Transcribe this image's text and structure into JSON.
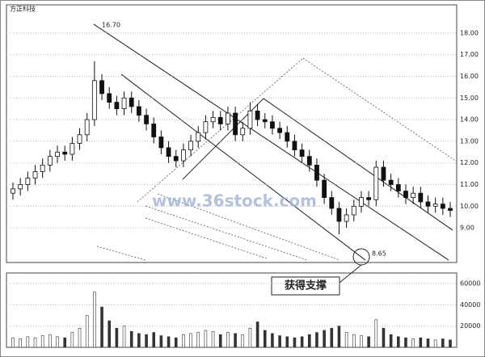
{
  "chart_data": {
    "type": "candlestick",
    "title": "方正科技",
    "open": [
      10.6,
      10.8,
      11.0,
      11.3,
      11.6,
      11.9,
      12.3,
      12.5,
      12.4,
      12.9,
      13.3,
      14.0,
      15.8,
      15.2,
      14.8,
      14.5,
      15.0,
      14.6,
      14.2,
      13.8,
      13.2,
      12.7,
      12.3,
      12.1,
      12.6,
      13.0,
      13.4,
      13.9,
      14.1,
      13.8,
      14.3,
      13.3,
      13.6,
      14.4,
      14.0,
      13.9,
      13.6,
      13.4,
      13.0,
      12.6,
      12.3,
      11.9,
      11.2,
      10.4,
      9.9,
      9.3,
      9.6,
      10.0,
      10.4,
      10.3,
      11.8,
      11.2,
      11.0,
      10.7,
      10.4,
      10.6,
      10.2,
      10.0,
      10.1,
      9.9
    ],
    "high": [
      11.1,
      11.3,
      11.6,
      11.9,
      12.2,
      12.6,
      12.8,
      12.8,
      13.2,
      13.6,
      14.3,
      16.7,
      16.1,
      15.5,
      15.1,
      15.3,
      15.3,
      14.9,
      14.5,
      14.1,
      13.5,
      13.0,
      12.6,
      12.9,
      13.3,
      13.7,
      14.2,
      14.4,
      14.4,
      14.6,
      14.6,
      13.9,
      14.8,
      14.7,
      14.3,
      14.2,
      13.9,
      13.7,
      13.3,
      12.9,
      12.6,
      12.2,
      11.5,
      10.7,
      10.2,
      9.9,
      10.3,
      10.7,
      10.7,
      12.1,
      12.1,
      11.5,
      11.3,
      11.0,
      10.9,
      10.9,
      10.5,
      10.4,
      10.4,
      10.2
    ],
    "low": [
      10.3,
      10.5,
      10.7,
      11.0,
      11.3,
      11.6,
      12.0,
      12.1,
      12.1,
      12.6,
      13.0,
      13.7,
      14.9,
      14.5,
      14.2,
      14.2,
      14.3,
      13.9,
      13.5,
      12.9,
      12.4,
      12.0,
      11.8,
      11.8,
      12.3,
      12.7,
      13.1,
      13.6,
      13.5,
      13.5,
      13.0,
      13.0,
      13.3,
      13.7,
      13.6,
      13.3,
      13.1,
      12.7,
      12.3,
      12.0,
      11.6,
      10.9,
      10.1,
      9.6,
      8.7,
      9.0,
      9.3,
      9.7,
      10.0,
      10.0,
      10.9,
      10.7,
      10.4,
      10.1,
      10.1,
      9.9,
      9.7,
      9.7,
      9.6,
      9.5
    ],
    "close": [
      10.8,
      11.0,
      11.3,
      11.6,
      11.9,
      12.3,
      12.5,
      12.4,
      12.9,
      13.3,
      14.0,
      15.8,
      15.2,
      14.8,
      14.5,
      15.0,
      14.6,
      14.2,
      13.8,
      13.2,
      12.7,
      12.3,
      12.1,
      12.6,
      13.0,
      13.4,
      13.9,
      14.1,
      13.8,
      14.3,
      13.3,
      13.6,
      14.4,
      14.0,
      13.9,
      13.6,
      13.4,
      13.0,
      12.6,
      12.3,
      11.9,
      11.2,
      10.4,
      9.9,
      9.3,
      9.6,
      10.0,
      10.4,
      10.3,
      11.8,
      11.2,
      11.0,
      10.7,
      10.4,
      10.6,
      10.2,
      10.0,
      10.1,
      9.9,
      9.8
    ],
    "volume": [
      9000,
      8000,
      10000,
      9000,
      11000,
      12000,
      10000,
      9000,
      14000,
      18000,
      30000,
      52000,
      38000,
      25000,
      18000,
      20000,
      15000,
      13000,
      12000,
      14000,
      11000,
      10000,
      9000,
      12000,
      13000,
      14000,
      16000,
      15000,
      12000,
      14000,
      13000,
      12000,
      18000,
      24000,
      16000,
      13000,
      11000,
      10000,
      9000,
      10000,
      12000,
      14000,
      16000,
      18000,
      20000,
      14000,
      12000,
      11000,
      10000,
      26000,
      18000,
      12000,
      10000,
      9000,
      8000,
      9000,
      8000,
      7000,
      8000,
      7000
    ],
    "ylim": [
      7.4,
      19.3
    ],
    "yticks": [
      {
        "value": 9,
        "label": "9.00"
      },
      {
        "value": 10,
        "label": "10.00"
      },
      {
        "value": 11,
        "label": "11.00"
      },
      {
        "value": 12,
        "label": "12.00"
      },
      {
        "value": 13,
        "label": "13.00"
      },
      {
        "value": 14,
        "label": "14.00"
      },
      {
        "value": 15,
        "label": "15.00"
      },
      {
        "value": 16,
        "label": "16.00"
      },
      {
        "value": 17,
        "label": "17.00"
      },
      {
        "value": 18,
        "label": "18.00"
      }
    ],
    "volume_ylim": [
      0,
      70000
    ],
    "volume_yticks": [
      20000,
      40000,
      60000
    ],
    "annotations": [
      "16.70",
      "8.65",
      "获得支撑"
    ],
    "watermark": "www.36stock.com"
  }
}
